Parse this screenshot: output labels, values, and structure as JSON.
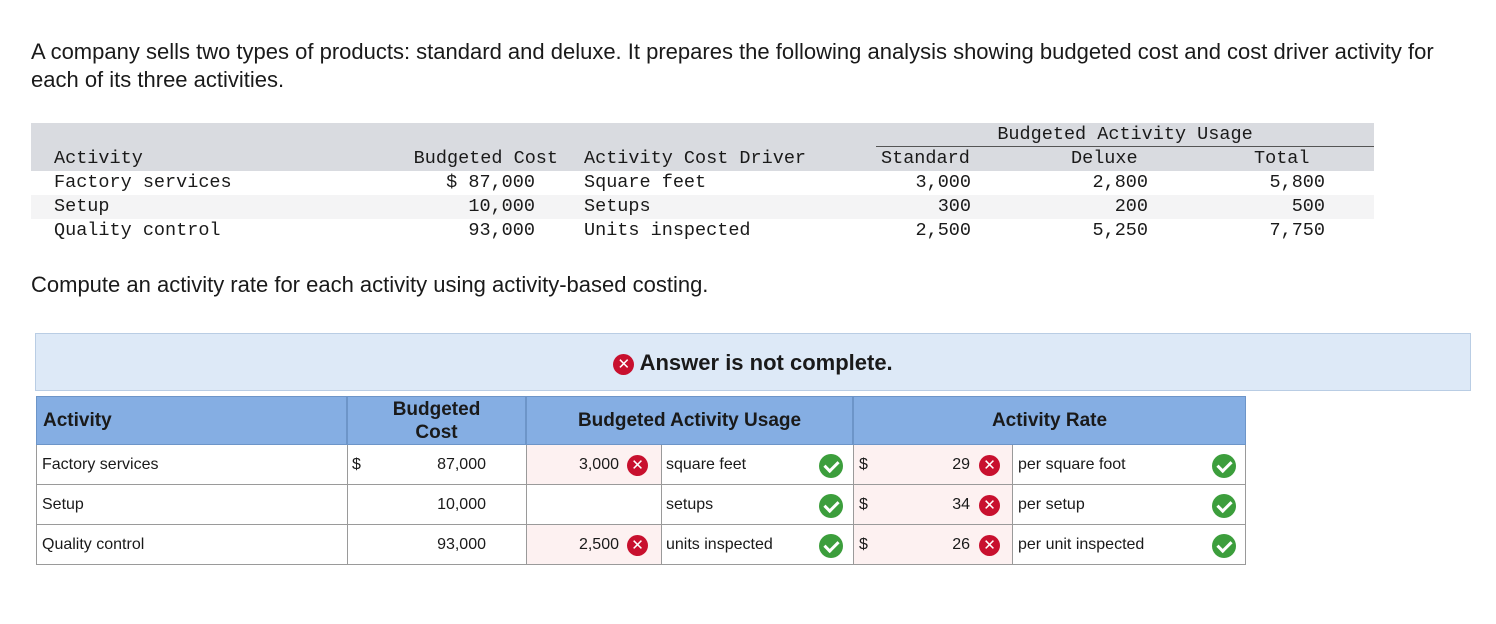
{
  "intro": "A company sells two types of products: standard and deluxe. It prepares the following analysis showing budgeted cost and cost driver activity for each of its three activities.",
  "data_table": {
    "group_header": "Budgeted Activity Usage",
    "headers": {
      "activity": "Activity",
      "budgeted_cost": "Budgeted Cost",
      "driver": "Activity Cost Driver",
      "standard": "Standard",
      "deluxe": "Deluxe",
      "total": "Total"
    },
    "rows": [
      {
        "activity": "Factory services",
        "cost": "$ 87,000",
        "driver": "Square feet",
        "standard": "3,000",
        "deluxe": "2,800",
        "total": "5,800"
      },
      {
        "activity": "Setup",
        "cost": "10,000",
        "driver": "Setups",
        "standard": "300",
        "deluxe": "200",
        "total": "500"
      },
      {
        "activity": "Quality control",
        "cost": "93,000",
        "driver": "Units inspected",
        "standard": "2,500",
        "deluxe": "5,250",
        "total": "7,750"
      }
    ]
  },
  "question": "Compute an activity rate for each activity using activity-based costing.",
  "answer_status": "Answer is not complete.",
  "answer": {
    "headers": {
      "activity": "Activity",
      "budgeted_cost_l1": "Budgeted",
      "budgeted_cost_l2": "Cost",
      "usage": "Budgeted Activity Usage",
      "rate": "Activity Rate"
    },
    "rows": [
      {
        "activity": "Factory services",
        "dollar": "$",
        "cost": "87,000",
        "usage": "3,000",
        "unit": "square feet",
        "rate_dollar": "$",
        "rate": "29",
        "rate_unit": "per square foot"
      },
      {
        "activity": "Setup",
        "dollar": "",
        "cost": "10,000",
        "usage": "",
        "unit": "setups",
        "rate_dollar": "$",
        "rate": "34",
        "rate_unit": "per setup"
      },
      {
        "activity": "Quality control",
        "dollar": "",
        "cost": "93,000",
        "usage": "2,500",
        "unit": "units inspected",
        "rate_dollar": "$",
        "rate": "26",
        "rate_unit": "per unit inspected"
      }
    ],
    "icons": {
      "incorrect": "x-icon",
      "correct": "check-icon"
    },
    "colors": {
      "header_bg": "#85aee3",
      "banner_bg": "#dde9f7",
      "incorrect": "#c8102e",
      "correct": "#3c9e3c",
      "incorrect_cell_bg": "#fdf1f1"
    }
  }
}
